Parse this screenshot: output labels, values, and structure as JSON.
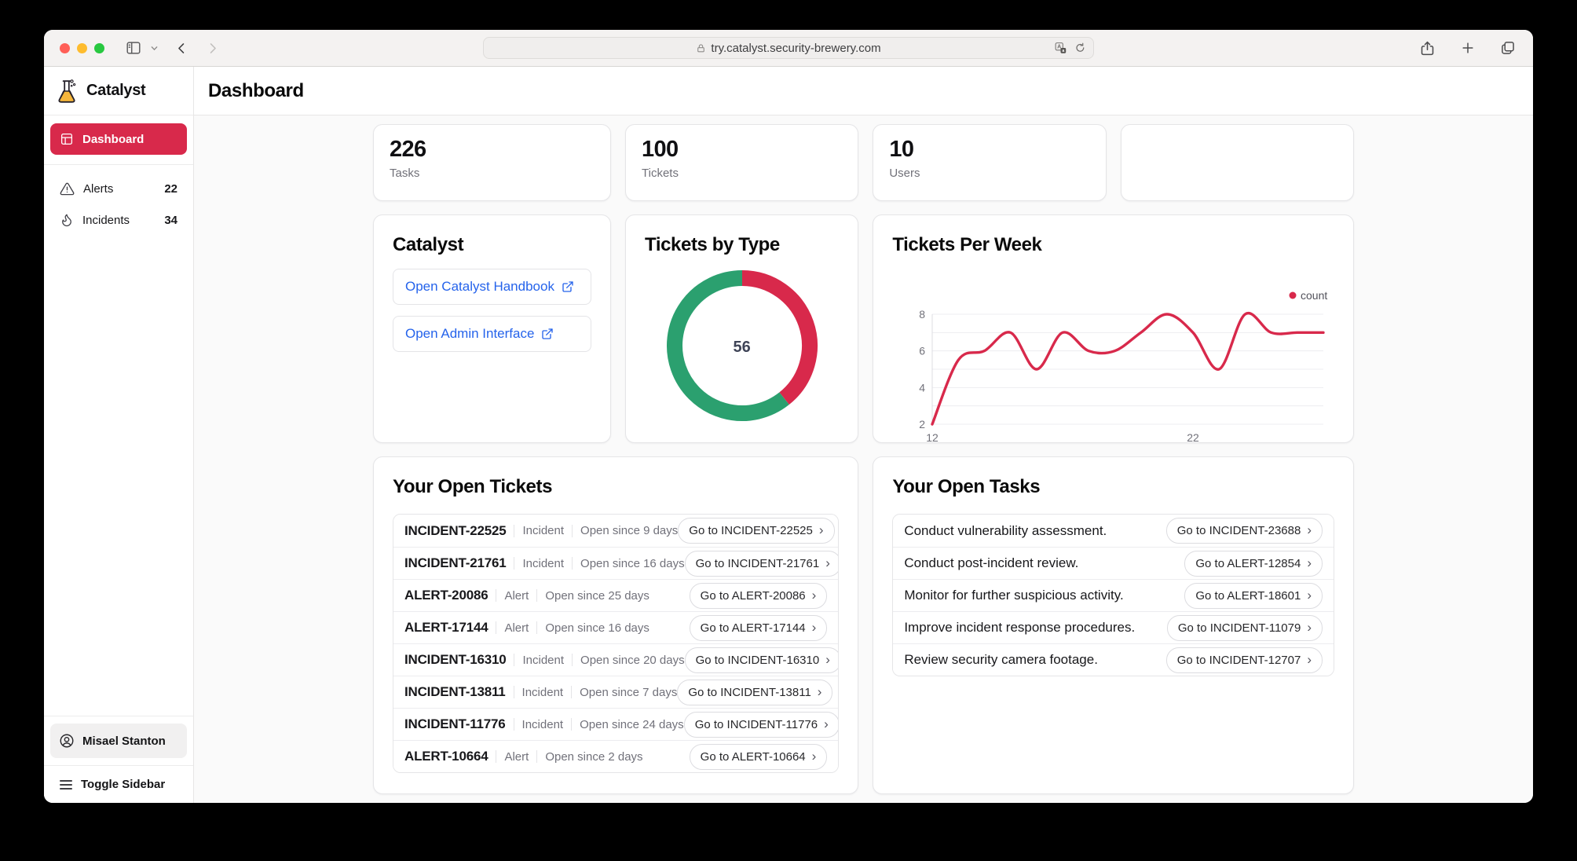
{
  "browser": {
    "url": "try.catalyst.security-brewery.com"
  },
  "sidebar": {
    "brand": "Catalyst",
    "active_item": {
      "label": "Dashboard"
    },
    "items": [
      {
        "label": "Alerts",
        "count": "22"
      },
      {
        "label": "Incidents",
        "count": "34"
      }
    ],
    "user": {
      "name": "Misael Stanton"
    },
    "toggle_label": "Toggle Sidebar"
  },
  "header": {
    "title": "Dashboard"
  },
  "stats": [
    {
      "value": "226",
      "label": "Tasks"
    },
    {
      "value": "100",
      "label": "Tickets"
    },
    {
      "value": "10",
      "label": "Users"
    },
    {
      "value": "",
      "label": ""
    }
  ],
  "catalyst_card": {
    "title": "Catalyst",
    "links": [
      {
        "label": "Open Catalyst Handbook"
      },
      {
        "label": "Open Admin Interface"
      }
    ]
  },
  "chart_data": [
    {
      "type": "pie",
      "subtype": "donut",
      "title": "Tickets by Type",
      "center_label": "56",
      "segments": [
        {
          "name": "red-segment",
          "value": 22,
          "color": "#d8294b"
        },
        {
          "name": "green-segment",
          "value": 34,
          "color": "#2ba06f"
        }
      ],
      "start_angle": "top",
      "direction": "clockwise"
    },
    {
      "type": "line",
      "title": "Tickets Per Week",
      "x": [
        12,
        13,
        14,
        15,
        16,
        17,
        18,
        19,
        20,
        21,
        22,
        23,
        24,
        25,
        26,
        27
      ],
      "series": [
        {
          "name": "count",
          "color": "#d8294b",
          "values": [
            2,
            5.5,
            6,
            7,
            5,
            7,
            6,
            6,
            7,
            8,
            7,
            5,
            8,
            7,
            7,
            7
          ]
        }
      ],
      "xticks": [
        12,
        22
      ],
      "yticks": [
        2,
        4,
        6,
        8
      ],
      "ylim": [
        2,
        8
      ],
      "grid": true,
      "smooth": true,
      "legend_position": "top-right"
    }
  ],
  "tickets_card": {
    "title": "Your Open Tickets",
    "rows": [
      {
        "id": "INCIDENT-22525",
        "type": "Incident",
        "since": "Open since 9 days",
        "button": "Go to INCIDENT-22525"
      },
      {
        "id": "INCIDENT-21761",
        "type": "Incident",
        "since": "Open since 16 days",
        "button": "Go to INCIDENT-21761"
      },
      {
        "id": "ALERT-20086",
        "type": "Alert",
        "since": "Open since 25 days",
        "button": "Go to ALERT-20086"
      },
      {
        "id": "ALERT-17144",
        "type": "Alert",
        "since": "Open since 16 days",
        "button": "Go to ALERT-17144"
      },
      {
        "id": "INCIDENT-16310",
        "type": "Incident",
        "since": "Open since 20 days",
        "button": "Go to INCIDENT-16310"
      },
      {
        "id": "INCIDENT-13811",
        "type": "Incident",
        "since": "Open since 7 days",
        "button": "Go to INCIDENT-13811"
      },
      {
        "id": "INCIDENT-11776",
        "type": "Incident",
        "since": "Open since 24 days",
        "button": "Go to INCIDENT-11776"
      },
      {
        "id": "ALERT-10664",
        "type": "Alert",
        "since": "Open since 2 days",
        "button": "Go to ALERT-10664"
      }
    ]
  },
  "tasks_card": {
    "title": "Your Open Tasks",
    "rows": [
      {
        "text": "Conduct vulnerability assessment.",
        "button": "Go to INCIDENT-23688"
      },
      {
        "text": "Conduct post-incident review.",
        "button": "Go to ALERT-12854"
      },
      {
        "text": "Monitor for further suspicious activity.",
        "button": "Go to ALERT-18601"
      },
      {
        "text": "Improve incident response procedures.",
        "button": "Go to INCIDENT-11079"
      },
      {
        "text": "Review security camera footage.",
        "button": "Go to INCIDENT-12707"
      }
    ]
  },
  "icons": {
    "chevron_right": "›"
  },
  "colors": {
    "brand_red": "#d8294b",
    "chart_green": "#2ba06f",
    "link_blue": "#2563eb",
    "page_bg": "#fafafa"
  }
}
